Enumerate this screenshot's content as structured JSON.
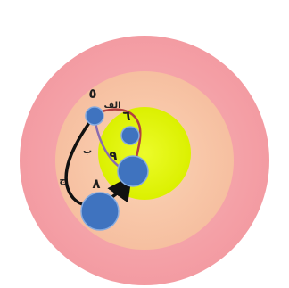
{
  "colors": {
    "outer_ring": "#f7a8ad",
    "middle_ring": "#f8c7a8",
    "inner_disc": "#e4f80f",
    "node_fill": "#3f73bf",
    "node_stroke": "#7fa6dd",
    "path_alef": "#b24141",
    "path_be": "#8a6bb0",
    "path_jim": "#111111",
    "arrow": "#333333"
  },
  "nodes": {
    "n5": "٥",
    "n6": "٦",
    "n8": "٨",
    "n9": "٩"
  },
  "paths": {
    "alef": "الف",
    "be": "ب",
    "jim": "ج"
  }
}
